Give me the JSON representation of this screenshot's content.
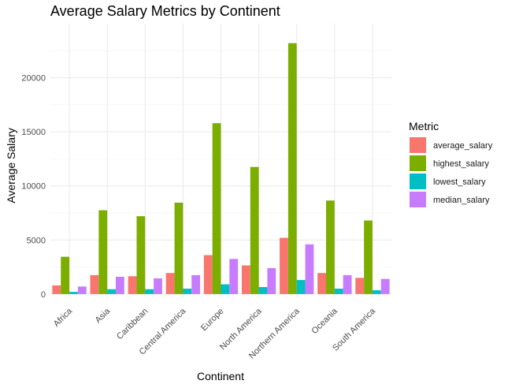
{
  "chart_data": {
    "type": "bar",
    "title": "Average Salary Metrics by Continent",
    "xlabel": "Continent",
    "ylabel": "Average Salary",
    "categories": [
      "Africa",
      "Asia",
      "Caribbean",
      "Central America",
      "Europe",
      "North America",
      "Northern America",
      "Oceania",
      "South America"
    ],
    "series": [
      {
        "name": "average_salary",
        "color": "#F8766D",
        "values": [
          800,
          1750,
          1650,
          1950,
          3600,
          2650,
          5200,
          1950,
          1500
        ]
      },
      {
        "name": "highest_salary",
        "color": "#7CAE00",
        "values": [
          3450,
          7750,
          7200,
          8450,
          15800,
          11750,
          23200,
          8650,
          6800
        ]
      },
      {
        "name": "lowest_salary",
        "color": "#00BFC4",
        "values": [
          200,
          450,
          450,
          500,
          900,
          650,
          1300,
          500,
          350
        ]
      },
      {
        "name": "median_salary",
        "color": "#C77CFF",
        "values": [
          700,
          1600,
          1450,
          1750,
          3250,
          2400,
          4600,
          1750,
          1400
        ]
      }
    ],
    "yticks": [
      0,
      5000,
      10000,
      15000,
      20000
    ],
    "ylim": [
      -300,
      25000
    ],
    "legend_title": "Metric",
    "legend_position": "right",
    "grid": true
  }
}
